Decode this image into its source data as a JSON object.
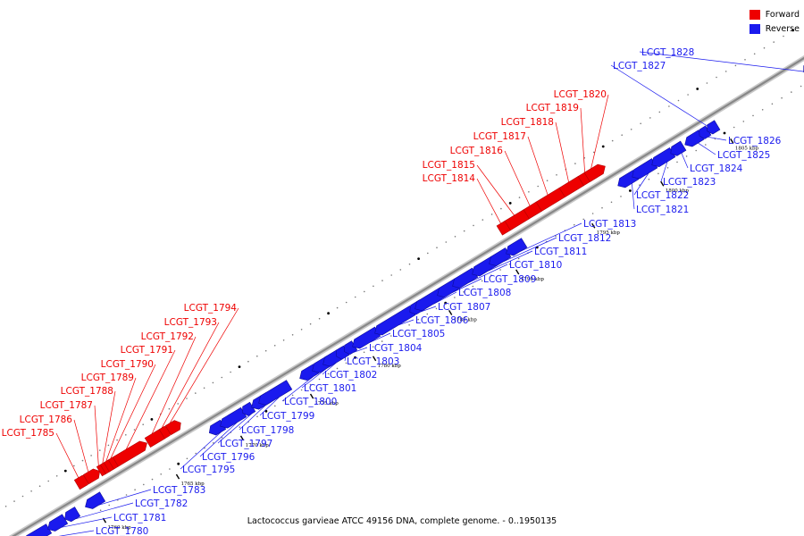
{
  "legend": [
    {
      "label": "Forward",
      "color": "#ee0000"
    },
    {
      "label": "Reverse",
      "color": "#1a1aee"
    }
  ],
  "caption": "Lactococcus garvieae ATCC 49156 DNA, complete genome. - 0..1950135",
  "colors": {
    "forward": "#ee0000",
    "reverse": "#1a1aee",
    "backbone": "#888888"
  },
  "ticks": [
    "1760 kbp",
    "1765 kbp",
    "1770 kbp",
    "1775 kbp",
    "1780 kbp",
    "1785 kbp",
    "1790 kbp",
    "1795 kbp",
    "1800 kbp",
    "1805 kbp",
    "1810 kbp"
  ],
  "genes": {
    "forward": [
      "LCGT_1785",
      "LCGT_1786",
      "LCGT_1787",
      "LCGT_1788",
      "LCGT_1789",
      "LCGT_1790",
      "LCGT_1791",
      "LCGT_1792",
      "LCGT_1793",
      "LCGT_1794",
      "LCGT_1814",
      "LCGT_1815",
      "LCGT_1816",
      "LCGT_1817",
      "LCGT_1818",
      "LCGT_1819",
      "LCGT_1820"
    ],
    "reverse": [
      "LCGT_1780",
      "LCGT_1781",
      "LCGT_1782",
      "LCGT_1783",
      "LCGT_1795",
      "LCGT_1796",
      "LCGT_1797",
      "LCGT_1798",
      "LCGT_1799",
      "LCGT_1800",
      "LCGT_1801",
      "LCGT_1802",
      "LCGT_1803",
      "LCGT_1804",
      "LCGT_1805",
      "LCGT_1806",
      "LCGT_1807",
      "LCGT_1808",
      "LCGT_1809",
      "LCGT_1810",
      "LCGT_1811",
      "LCGT_1812",
      "LCGT_1813",
      "LCGT_1821",
      "LCGT_1822",
      "LCGT_1823",
      "LCGT_1824",
      "LCGT_1825",
      "LCGT_1826",
      "LCGT_1827",
      "LCGT_1828"
    ]
  }
}
